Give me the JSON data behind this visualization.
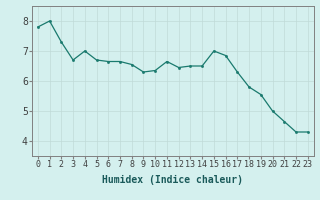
{
  "x": [
    0,
    1,
    2,
    3,
    4,
    5,
    6,
    7,
    8,
    9,
    10,
    11,
    12,
    13,
    14,
    15,
    16,
    17,
    18,
    19,
    20,
    21,
    22,
    23
  ],
  "y": [
    7.8,
    8.0,
    7.3,
    6.7,
    7.0,
    6.7,
    6.65,
    6.65,
    6.55,
    6.3,
    6.35,
    6.65,
    6.45,
    6.5,
    6.5,
    7.0,
    6.85,
    6.3,
    5.8,
    5.55,
    5.0,
    4.65,
    4.3,
    4.3
  ],
  "xlabel": "Humidex (Indice chaleur)",
  "xlim": [
    -0.5,
    23.5
  ],
  "ylim": [
    3.5,
    8.5
  ],
  "yticks": [
    4,
    5,
    6,
    7,
    8
  ],
  "xticks": [
    0,
    1,
    2,
    3,
    4,
    5,
    6,
    7,
    8,
    9,
    10,
    11,
    12,
    13,
    14,
    15,
    16,
    17,
    18,
    19,
    20,
    21,
    22,
    23
  ],
  "line_color": "#1a7a6e",
  "marker_color": "#1a7a6e",
  "bg_color": "#d4f0ee",
  "grid_color": "#c0dbd8",
  "spine_color": "#808080",
  "tick_color": "#404040",
  "xlabel_color": "#1a5a5a",
  "tick_fontsize": 6,
  "xlabel_fontsize": 7
}
